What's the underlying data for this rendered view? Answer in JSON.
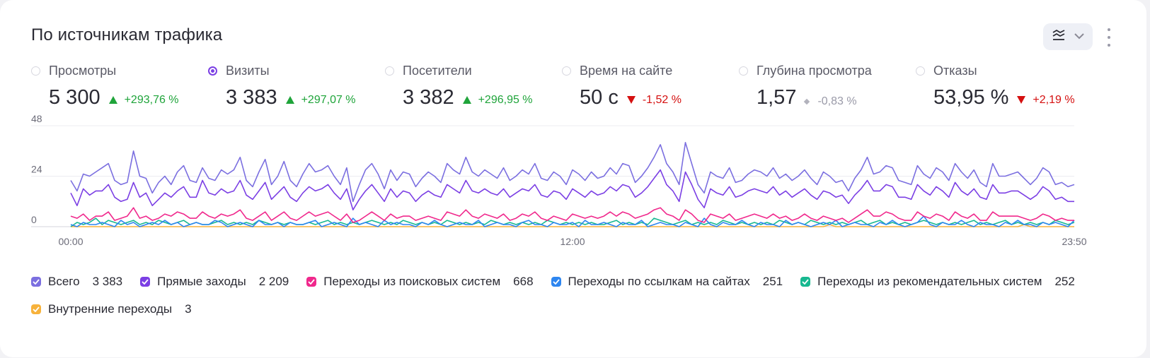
{
  "title": "По источникам трафика",
  "toolbar": {
    "chart_type_icon": "line-chart-icon",
    "dropdown_icon": "chevron-down-icon",
    "more_icon": "more-vertical-icon"
  },
  "metrics": [
    {
      "label": "Просмотры",
      "value": "5 300",
      "delta": "+293,76 %",
      "trend": "up",
      "selected": false
    },
    {
      "label": "Визиты",
      "value": "3 383",
      "delta": "+297,07 %",
      "trend": "up",
      "selected": true
    },
    {
      "label": "Посетители",
      "value": "3 382",
      "delta": "+296,95 %",
      "trend": "up",
      "selected": false
    },
    {
      "label": "Время на сайте",
      "value": "50 с",
      "delta": "-1,52 %",
      "trend": "down",
      "selected": false
    },
    {
      "label": "Глубина просмотра",
      "value": "1,57",
      "delta": "-0,83 %",
      "trend": "neutral",
      "selected": false
    },
    {
      "label": "Отказы",
      "value": "53,95 %",
      "delta": "+2,19 %",
      "trend": "down",
      "selected": false
    }
  ],
  "legend": [
    {
      "name": "Всего",
      "value": "3 383",
      "color": "#7b6fe0"
    },
    {
      "name": "Прямые заходы",
      "value": "2 209",
      "color": "#7b3fe4"
    },
    {
      "name": "Переходы из поисковых систем",
      "value": "668",
      "color": "#f0288c"
    },
    {
      "name": "Переходы по ссылкам на сайтах",
      "value": "251",
      "color": "#2e86f0"
    },
    {
      "name": "Переходы из рекомендательных систем",
      "value": "252",
      "color": "#17b890"
    },
    {
      "name": "Внутренние переходы",
      "value": "3",
      "color": "#f7b23b"
    }
  ],
  "chart_data": {
    "type": "line",
    "x_tick_labels": [
      "00:00",
      "12:00",
      "23:50"
    ],
    "y_tick_labels": [
      "0",
      "24",
      "48"
    ],
    "ylim": [
      0,
      48
    ],
    "grid": true,
    "series": [
      {
        "name": "Всего",
        "color": "#7b6fe0",
        "values": [
          22,
          17,
          25,
          24,
          26,
          28,
          30,
          22,
          20,
          21,
          36,
          24,
          23,
          16,
          21,
          24,
          20,
          26,
          29,
          22,
          21,
          28,
          23,
          22,
          27,
          25,
          27,
          33,
          22,
          19,
          26,
          32,
          20,
          24,
          31,
          22,
          19,
          25,
          30,
          26,
          27,
          29,
          24,
          20,
          28,
          12,
          20,
          27,
          30,
          25,
          18,
          27,
          22,
          26,
          25,
          19,
          23,
          26,
          24,
          21,
          30,
          27,
          25,
          33,
          26,
          24,
          27,
          25,
          23,
          28,
          22,
          24,
          27,
          25,
          30,
          23,
          22,
          26,
          24,
          20,
          27,
          25,
          22,
          26,
          23,
          24,
          28,
          25,
          30,
          29,
          21,
          24,
          28,
          33,
          39,
          30,
          26,
          20,
          40,
          30,
          20,
          16,
          26,
          24,
          23,
          28,
          21,
          22,
          25,
          27,
          26,
          24,
          28,
          23,
          25,
          22,
          24,
          27,
          23,
          20,
          26,
          24,
          21,
          22,
          17,
          23,
          27,
          33,
          25,
          26,
          29,
          28,
          22,
          21,
          20,
          29,
          25,
          23,
          28,
          26,
          22,
          30,
          26,
          23,
          27,
          21,
          19,
          30,
          24,
          24,
          25,
          26,
          23,
          20,
          23,
          28,
          26,
          20,
          21,
          19,
          20
        ]
      },
      {
        "name": "Прямые заходы",
        "color": "#7b3fe4",
        "values": [
          16,
          10,
          18,
          15,
          17,
          17,
          20,
          14,
          12,
          13,
          21,
          14,
          16,
          10,
          13,
          16,
          14,
          17,
          19,
          14,
          14,
          22,
          16,
          15,
          18,
          16,
          17,
          22,
          15,
          13,
          17,
          21,
          13,
          16,
          19,
          14,
          12,
          16,
          19,
          17,
          18,
          20,
          16,
          13,
          18,
          8,
          13,
          17,
          20,
          16,
          12,
          18,
          14,
          17,
          16,
          12,
          15,
          17,
          15,
          14,
          20,
          18,
          16,
          22,
          17,
          16,
          18,
          16,
          15,
          18,
          14,
          16,
          18,
          17,
          20,
          15,
          14,
          17,
          16,
          13,
          18,
          16,
          14,
          17,
          15,
          16,
          19,
          17,
          20,
          19,
          14,
          16,
          19,
          23,
          27,
          20,
          17,
          12,
          26,
          20,
          13,
          9,
          18,
          16,
          15,
          19,
          14,
          15,
          17,
          18,
          17,
          16,
          19,
          15,
          17,
          14,
          16,
          18,
          15,
          13,
          17,
          16,
          14,
          15,
          11,
          15,
          18,
          22,
          17,
          17,
          20,
          19,
          14,
          14,
          13,
          20,
          17,
          15,
          19,
          17,
          14,
          21,
          17,
          15,
          18,
          14,
          13,
          20,
          16,
          16,
          17,
          17,
          15,
          13,
          15,
          19,
          17,
          13,
          14,
          12,
          12
        ]
      },
      {
        "name": "Переходы из поисковых систем",
        "color": "#f0288c",
        "values": [
          5,
          4,
          6,
          3,
          5,
          5,
          7,
          3,
          4,
          5,
          9,
          4,
          5,
          3,
          4,
          6,
          5,
          7,
          6,
          4,
          4,
          7,
          5,
          4,
          6,
          5,
          6,
          8,
          4,
          3,
          5,
          7,
          3,
          5,
          7,
          4,
          3,
          5,
          7,
          5,
          6,
          7,
          5,
          3,
          6,
          2,
          3,
          5,
          7,
          5,
          3,
          6,
          4,
          5,
          5,
          3,
          4,
          5,
          4,
          3,
          7,
          6,
          5,
          8,
          5,
          4,
          6,
          5,
          4,
          6,
          3,
          4,
          6,
          5,
          7,
          4,
          3,
          5,
          4,
          3,
          6,
          5,
          4,
          5,
          4,
          5,
          7,
          5,
          7,
          6,
          4,
          5,
          6,
          8,
          9,
          6,
          5,
          3,
          8,
          6,
          3,
          2,
          6,
          5,
          4,
          6,
          3,
          4,
          5,
          6,
          5,
          4,
          6,
          4,
          5,
          3,
          4,
          6,
          4,
          3,
          5,
          4,
          3,
          4,
          2,
          4,
          6,
          8,
          5,
          5,
          7,
          6,
          4,
          3,
          3,
          7,
          5,
          4,
          6,
          5,
          3,
          7,
          5,
          4,
          6,
          3,
          3,
          7,
          5,
          5,
          5,
          5,
          4,
          3,
          4,
          6,
          5,
          3,
          4,
          3,
          3
        ]
      },
      {
        "name": "Переходы по ссылкам на сайтах",
        "color": "#2e86f0",
        "values": [
          1,
          0,
          2,
          1,
          1,
          2,
          1,
          0,
          3,
          1,
          2,
          0,
          1,
          2,
          1,
          3,
          1,
          2,
          0,
          1,
          2,
          1,
          1,
          3,
          2,
          0,
          1,
          2,
          1,
          0,
          3,
          1,
          1,
          2,
          0,
          2,
          1,
          1,
          2,
          3,
          0,
          1,
          2,
          1,
          0,
          4,
          1,
          2,
          1,
          0,
          3,
          1,
          2,
          1,
          1,
          0,
          2,
          1,
          3,
          1,
          0,
          1,
          2,
          1,
          1,
          3,
          0,
          1,
          2,
          1,
          1,
          0,
          2,
          3,
          1,
          1,
          0,
          2,
          1,
          1,
          2,
          0,
          3,
          1,
          1,
          2,
          1,
          0,
          2,
          1,
          1,
          3,
          0,
          1,
          2,
          1,
          1,
          0,
          2,
          1,
          0,
          4,
          1,
          0,
          2,
          1,
          1,
          3,
          1,
          0,
          2,
          1,
          1,
          0,
          3,
          1,
          2,
          1,
          0,
          1,
          2,
          1,
          3,
          0,
          1,
          2,
          1,
          1,
          0,
          2,
          1,
          3,
          1,
          0,
          1,
          2,
          5,
          1,
          0,
          2,
          1,
          1,
          3,
          1,
          0,
          2,
          1,
          1,
          0,
          2,
          1,
          3,
          1,
          1,
          0,
          2,
          1,
          2,
          1,
          0,
          3
        ]
      },
      {
        "name": "Переходы из рекомендательных систем",
        "color": "#17b890",
        "values": [
          0,
          2,
          1,
          2,
          4,
          1,
          3,
          2,
          1,
          2,
          3,
          1,
          2,
          1,
          3,
          2,
          1,
          2,
          3,
          1,
          2,
          1,
          1,
          2,
          3,
          1,
          2,
          1,
          2,
          1,
          3,
          2,
          1,
          2,
          1,
          2,
          1,
          1,
          2,
          1,
          2,
          3,
          1,
          2,
          1,
          2,
          1,
          2,
          3,
          2,
          1,
          2,
          1,
          3,
          2,
          1,
          2,
          1,
          2,
          1,
          3,
          2,
          1,
          2,
          1,
          2,
          1,
          3,
          2,
          1,
          2,
          1,
          2,
          1,
          2,
          1,
          3,
          2,
          1,
          2,
          1,
          2,
          1,
          2,
          1,
          1,
          2,
          3,
          1,
          2,
          1,
          2,
          1,
          4,
          3,
          2,
          1,
          2,
          3,
          1,
          2,
          1,
          2,
          1,
          3,
          2,
          1,
          2,
          1,
          2,
          1,
          2,
          1,
          3,
          2,
          1,
          2,
          1,
          3,
          2,
          1,
          2,
          1,
          2,
          1,
          2,
          3,
          1,
          2,
          3,
          1,
          2,
          1,
          2,
          1,
          2,
          3,
          2,
          1,
          2,
          1,
          2,
          1,
          2,
          3,
          1,
          2,
          1,
          2,
          3,
          1,
          2,
          1,
          2,
          1,
          2,
          1,
          3,
          2,
          1,
          2
        ]
      },
      {
        "name": "Внутренние переходы",
        "color": "#f7b23b",
        "values": [
          0,
          0,
          0,
          0,
          0,
          0,
          0,
          0,
          0,
          0,
          0,
          0,
          0,
          0,
          0,
          0,
          0,
          0,
          0,
          0,
          0,
          0,
          0,
          0,
          0,
          0,
          0,
          0,
          0,
          0,
          0,
          0,
          0,
          0,
          0,
          0,
          0,
          0,
          0,
          0,
          0,
          0,
          0,
          0,
          0,
          0,
          0,
          0,
          0,
          0,
          0,
          0,
          0,
          0,
          0,
          0,
          0,
          0,
          0,
          0,
          0,
          0,
          0,
          0,
          0,
          0,
          0,
          0,
          0,
          0,
          0,
          0,
          0,
          0,
          0,
          0,
          0,
          0,
          0,
          0,
          0,
          0,
          0,
          0,
          0,
          0,
          0,
          0,
          0,
          0,
          0,
          0,
          0,
          0,
          0,
          0,
          0,
          0,
          0,
          0,
          0,
          0,
          0,
          0,
          0,
          0,
          0,
          0,
          0,
          0,
          0,
          0,
          0,
          0,
          0,
          0,
          0,
          0,
          0,
          0,
          0,
          1,
          0,
          0,
          0,
          0,
          0,
          0,
          0,
          0,
          0,
          0,
          0,
          0,
          0,
          0,
          0,
          0,
          0,
          0,
          0,
          0,
          0,
          0,
          0,
          0,
          0,
          0,
          0,
          0,
          0,
          0,
          1,
          0,
          0,
          0,
          0,
          0,
          0,
          0,
          0
        ]
      }
    ]
  }
}
